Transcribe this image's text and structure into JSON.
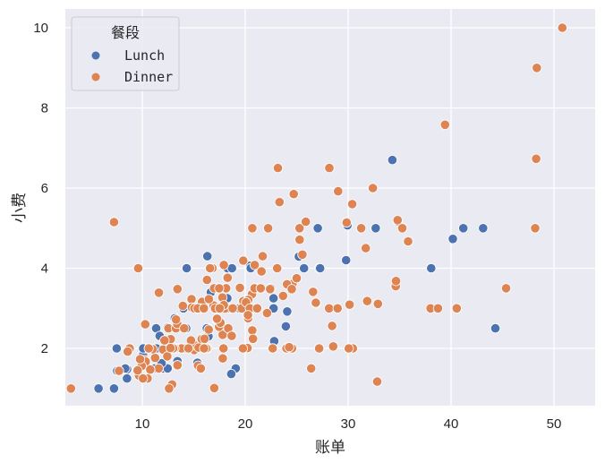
{
  "chart_data": {
    "type": "scatter",
    "title": "",
    "xlabel": "账单",
    "ylabel": "小费",
    "xlim": [
      0.5,
      53.2
    ],
    "ylim": [
      0.56,
      10.44
    ],
    "xticks": [
      10,
      20,
      30,
      40,
      50
    ],
    "yticks": [
      2,
      4,
      6,
      8,
      10
    ],
    "grid": true,
    "legend": {
      "title": "餐段",
      "position": "upper left",
      "entries": [
        "Lunch",
        "Dinner"
      ]
    },
    "colors": {
      "Lunch": "#4c72b0",
      "Dinner": "#dd8452",
      "background": "#eaeaf2",
      "grid": "#ffffff"
    },
    "series": [
      {
        "name": "Lunch",
        "points": [
          [
            27.2,
            4.0
          ],
          [
            22.76,
            3.0
          ],
          [
            17.29,
            2.71
          ],
          [
            19.44,
            3.0
          ],
          [
            16.66,
            3.4
          ],
          [
            10.07,
            1.83
          ],
          [
            32.68,
            5.0
          ],
          [
            15.98,
            2.03
          ],
          [
            34.83,
            5.17
          ],
          [
            13.03,
            2.0
          ],
          [
            18.28,
            4.0
          ],
          [
            24.71,
            5.85
          ],
          [
            21.16,
            3.0
          ],
          [
            28.97,
            3.0
          ],
          [
            22.49,
            3.5
          ],
          [
            5.75,
            1.0
          ],
          [
            16.32,
            4.3
          ],
          [
            22.75,
            3.25
          ],
          [
            40.17,
            4.73
          ],
          [
            27.28,
            4.0
          ],
          [
            12.03,
            1.5
          ],
          [
            21.01,
            3.0
          ],
          [
            12.46,
            1.5
          ],
          [
            11.35,
            2.5
          ],
          [
            15.38,
            3.0
          ],
          [
            44.3,
            2.5
          ],
          [
            22.42,
            3.48
          ],
          [
            20.92,
            4.08
          ],
          [
            15.36,
            1.64
          ],
          [
            20.49,
            4.06
          ],
          [
            25.21,
            4.29
          ],
          [
            18.24,
            3.76
          ],
          [
            14.31,
            4.0
          ],
          [
            14.0,
            3.0
          ],
          [
            7.25,
            1.0
          ],
          [
            38.07,
            4.0
          ],
          [
            23.95,
            2.55
          ],
          [
            25.71,
            4.0
          ],
          [
            17.31,
            3.5
          ],
          [
            29.93,
            5.07
          ],
          [
            10.65,
            1.5
          ],
          [
            12.43,
            1.8
          ],
          [
            24.08,
            2.92
          ],
          [
            11.69,
            2.31
          ],
          [
            13.42,
            1.68
          ],
          [
            14.26,
            2.5
          ],
          [
            15.95,
            2.0
          ],
          [
            12.48,
            2.52
          ],
          [
            29.8,
            4.2
          ],
          [
            8.52,
            1.48
          ],
          [
            14.52,
            2.0
          ],
          [
            11.38,
            2.0
          ],
          [
            22.82,
            2.18
          ],
          [
            19.08,
            1.5
          ],
          [
            20.27,
            2.83
          ],
          [
            11.17,
            1.5
          ],
          [
            12.26,
            2.0
          ],
          [
            18.26,
            3.25
          ],
          [
            8.51,
            1.25
          ],
          [
            10.33,
            2.0
          ],
          [
            14.15,
            2.0
          ],
          [
            16.0,
            2.0
          ],
          [
            13.16,
            2.75
          ],
          [
            17.47,
            3.5
          ],
          [
            34.3,
            6.7
          ],
          [
            41.19,
            5.0
          ],
          [
            27.05,
            5.0
          ],
          [
            16.43,
            2.3
          ],
          [
            8.35,
            1.5
          ],
          [
            18.64,
            1.36
          ],
          [
            11.87,
            1.63
          ],
          [
            9.78,
            1.73
          ],
          [
            7.51,
            2.0
          ],
          [
            19.81,
            4.19
          ],
          [
            28.44,
            2.56
          ],
          [
            15.48,
            2.02
          ],
          [
            16.58,
            4.0
          ],
          [
            7.56,
            1.44
          ],
          [
            10.34,
            2.0
          ],
          [
            43.11,
            5.0
          ],
          [
            13.0,
            2.0
          ],
          [
            13.51,
            2.0
          ],
          [
            18.71,
            4.0
          ],
          [
            12.74,
            2.01
          ],
          [
            13.0,
            2.0
          ],
          [
            16.4,
            2.5
          ],
          [
            20.53,
            4.0
          ],
          [
            16.47,
            3.23
          ],
          [
            12.16,
            2.2
          ],
          [
            13.42,
            3.48
          ],
          [
            8.58,
            1.92
          ],
          [
            15.98,
            3.0
          ],
          [
            13.42,
            1.58
          ],
          [
            16.27,
            2.5
          ],
          [
            10.09,
            2.0
          ]
        ]
      },
      {
        "name": "Dinner",
        "points": [
          [
            16.99,
            1.01
          ],
          [
            10.34,
            1.66
          ],
          [
            21.01,
            3.5
          ],
          [
            23.68,
            3.31
          ],
          [
            24.59,
            3.61
          ],
          [
            25.29,
            4.71
          ],
          [
            8.77,
            2.0
          ],
          [
            26.88,
            3.12
          ],
          [
            15.04,
            1.96
          ],
          [
            14.78,
            3.23
          ],
          [
            10.27,
            1.71
          ],
          [
            35.26,
            5.0
          ],
          [
            15.42,
            1.57
          ],
          [
            18.43,
            3.0
          ],
          [
            14.83,
            3.02
          ],
          [
            21.58,
            3.92
          ],
          [
            10.33,
            1.67
          ],
          [
            16.29,
            3.71
          ],
          [
            16.97,
            3.5
          ],
          [
            20.65,
            3.35
          ],
          [
            17.92,
            4.08
          ],
          [
            20.29,
            2.75
          ],
          [
            15.77,
            2.23
          ],
          [
            39.42,
            7.58
          ],
          [
            19.82,
            3.18
          ],
          [
            17.81,
            2.34
          ],
          [
            13.37,
            2.0
          ],
          [
            12.69,
            2.0
          ],
          [
            21.7,
            4.3
          ],
          [
            19.65,
            3.0
          ],
          [
            9.55,
            1.45
          ],
          [
            18.35,
            2.5
          ],
          [
            15.06,
            3.0
          ],
          [
            20.69,
            2.45
          ],
          [
            17.78,
            3.27
          ],
          [
            24.06,
            3.6
          ],
          [
            16.31,
            2.0
          ],
          [
            16.93,
            3.07
          ],
          [
            18.69,
            2.31
          ],
          [
            31.27,
            5.0
          ],
          [
            16.04,
            2.24
          ],
          [
            17.46,
            2.54
          ],
          [
            13.94,
            3.06
          ],
          [
            9.68,
            1.32
          ],
          [
            30.4,
            5.6
          ],
          [
            18.29,
            3.0
          ],
          [
            22.23,
            5.0
          ],
          [
            32.4,
            6.0
          ],
          [
            28.55,
            2.05
          ],
          [
            18.04,
            3.0
          ],
          [
            12.54,
            2.5
          ],
          [
            10.29,
            2.6
          ],
          [
            34.81,
            5.2
          ],
          [
            9.94,
            1.56
          ],
          [
            25.56,
            4.34
          ],
          [
            19.49,
            3.51
          ],
          [
            38.01,
            3.0
          ],
          [
            26.41,
            1.5
          ],
          [
            11.24,
            1.76
          ],
          [
            48.27,
            6.73
          ],
          [
            20.29,
            3.21
          ],
          [
            13.81,
            2.0
          ],
          [
            11.02,
            1.98
          ],
          [
            18.29,
            3.76
          ],
          [
            17.59,
            2.64
          ],
          [
            20.08,
            3.15
          ],
          [
            16.45,
            2.47
          ],
          [
            3.07,
            1.0
          ],
          [
            20.23,
            2.01
          ],
          [
            15.01,
            2.09
          ],
          [
            12.02,
            1.97
          ],
          [
            17.07,
            3.0
          ],
          [
            26.86,
            3.14
          ],
          [
            25.28,
            5.0
          ],
          [
            14.73,
            2.2
          ],
          [
            10.51,
            1.25
          ],
          [
            17.92,
            3.08
          ],
          [
            30.06,
            2.0
          ],
          [
            25.89,
            5.16
          ],
          [
            48.33,
            9.0
          ],
          [
            13.27,
            2.5
          ],
          [
            28.17,
            6.5
          ],
          [
            12.9,
            1.1
          ],
          [
            28.15,
            3.0
          ],
          [
            11.59,
            1.5
          ],
          [
            7.74,
            1.44
          ],
          [
            30.14,
            3.09
          ],
          [
            20.76,
            2.24
          ],
          [
            24.55,
            2.0
          ],
          [
            25.0,
            3.75
          ],
          [
            13.39,
            2.61
          ],
          [
            16.21,
            2.0
          ],
          [
            40.55,
            3.0
          ],
          [
            20.45,
            3.0
          ],
          [
            20.23,
            2.01
          ],
          [
            24.27,
            2.03
          ],
          [
            13.81,
            2.0
          ],
          [
            10.77,
            1.47
          ],
          [
            15.53,
            3.0
          ],
          [
            31.71,
            4.5
          ],
          [
            17.26,
            2.74
          ],
          [
            24.52,
            3.48
          ],
          [
            22.67,
            2.0
          ],
          [
            50.81,
            10.0
          ],
          [
            15.81,
            3.16
          ],
          [
            7.25,
            5.15
          ],
          [
            31.85,
            3.18
          ],
          [
            16.82,
            4.0
          ],
          [
            32.9,
            3.11
          ],
          [
            17.89,
            2.0
          ],
          [
            14.48,
            2.0
          ],
          [
            9.6,
            4.0
          ],
          [
            34.63,
            3.55
          ],
          [
            34.65,
            3.68
          ],
          [
            23.33,
            5.65
          ],
          [
            45.35,
            3.5
          ],
          [
            23.17,
            6.5
          ],
          [
            40.55,
            3.0
          ],
          [
            20.69,
            5.0
          ],
          [
            20.9,
            3.5
          ],
          [
            30.46,
            2.0
          ],
          [
            18.15,
            3.5
          ],
          [
            23.1,
            4.0
          ],
          [
            15.69,
            1.5
          ],
          [
            19.81,
            4.19
          ],
          [
            28.44,
            2.56
          ],
          [
            48.17,
            5.0
          ],
          [
            25.0,
            3.75
          ],
          [
            32.83,
            1.17
          ],
          [
            35.83,
            4.67
          ],
          [
            29.03,
            5.92
          ],
          [
            27.18,
            2.0
          ],
          [
            22.67,
            2.0
          ],
          [
            17.82,
            1.75
          ],
          [
            18.78,
            3.0
          ],
          [
            24.01,
            2.0
          ],
          [
            15.69,
            3.0
          ],
          [
            11.61,
            3.39
          ],
          [
            10.77,
            1.47
          ],
          [
            15.53,
            3.0
          ],
          [
            10.07,
            1.25
          ],
          [
            12.6,
            1.0
          ],
          [
            32.83,
            1.17
          ],
          [
            20.27,
            2.83
          ],
          [
            15.48,
            2.02
          ],
          [
            9.55,
            1.45
          ],
          [
            17.51,
            3.0
          ],
          [
            12.43,
            1.8
          ],
          [
            13.28,
            2.72
          ],
          [
            24.71,
            5.85
          ],
          [
            38.73,
            3.0
          ],
          [
            21.5,
            3.5
          ],
          [
            26.59,
            3.41
          ],
          [
            25.56,
            4.34
          ],
          [
            13.42,
            1.58
          ],
          [
            16.58,
            4.0
          ],
          [
            22.12,
            2.88
          ],
          [
            17.47,
            3.5
          ],
          [
            14.07,
            2.5
          ],
          [
            13.13,
            2.0
          ],
          [
            19.77,
            2.0
          ],
          [
            29.85,
            5.14
          ],
          [
            48.17,
            5.0
          ],
          [
            18.69,
            2.31
          ],
          [
            31.27,
            5.0
          ],
          [
            24.27,
            2.03
          ],
          [
            12.76,
            2.23
          ],
          [
            30.06,
            2.0
          ],
          [
            25.89,
            5.16
          ],
          [
            10.63,
            2.0
          ],
          [
            15.38,
            3.0
          ],
          [
            9.78,
            1.73
          ],
          [
            22.42,
            3.48
          ],
          [
            20.92,
            4.08
          ],
          [
            16.0,
            2.0
          ],
          [
            21.16,
            3.0
          ],
          [
            28.97,
            3.0
          ],
          [
            16.47,
            3.23
          ],
          [
            13.0,
            2.0
          ],
          [
            12.74,
            2.01
          ],
          [
            7.74,
            1.44
          ],
          [
            30.14,
            3.09
          ],
          [
            12.16,
            2.2
          ],
          [
            13.42,
            3.48
          ],
          [
            8.58,
            1.92
          ],
          [
            15.98,
            3.0
          ],
          [
            13.42,
            1.58
          ]
        ]
      }
    ]
  }
}
